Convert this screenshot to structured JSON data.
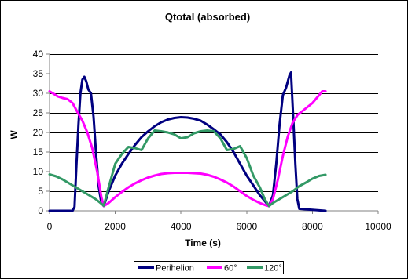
{
  "chart_data": {
    "type": "line",
    "title": "Qtotal (absorbed)",
    "xlabel": "Time (s)",
    "ylabel": "W",
    "xlim": [
      0,
      10000
    ],
    "ylim": [
      0,
      40
    ],
    "x_ticks": [
      0,
      2000,
      4000,
      6000,
      8000,
      10000
    ],
    "y_ticks": [
      0,
      5,
      10,
      15,
      20,
      25,
      30,
      35,
      40
    ],
    "grid": "horizontal",
    "legend": "bottom",
    "series": [
      {
        "name": "Perihelion",
        "color": "#000080",
        "x": [
          0,
          700,
          760,
          820,
          880,
          940,
          1000,
          1060,
          1120,
          1180,
          1260,
          1340,
          1420,
          1500,
          1580,
          1650,
          1800,
          2000,
          2200,
          2400,
          2600,
          2800,
          3000,
          3200,
          3400,
          3600,
          3800,
          4000,
          4200,
          4400,
          4600,
          4800,
          5000,
          5200,
          5400,
          5600,
          5800,
          6000,
          6200,
          6400,
          6550,
          6680,
          6800,
          6900,
          7000,
          7100,
          7200,
          7300,
          7350,
          7420,
          7480,
          7540,
          7600,
          8400
        ],
        "y": [
          0,
          0,
          1,
          12,
          22,
          30,
          33.5,
          34.2,
          33,
          31,
          30,
          24,
          14,
          6,
          2,
          1.2,
          5,
          9,
          12,
          14.5,
          16.8,
          18.8,
          20.3,
          21.6,
          22.6,
          23.3,
          23.7,
          23.9,
          23.8,
          23.5,
          23,
          22,
          20.8,
          19.5,
          17.5,
          15,
          12,
          9,
          6.5,
          4,
          2.5,
          1.2,
          4,
          12,
          22,
          29.5,
          31.5,
          34.5,
          35.3,
          23,
          12,
          3,
          0.5,
          0
        ]
      },
      {
        "name": "60°",
        "color": "#FF00FF",
        "x": [
          0,
          100,
          250,
          400,
          550,
          700,
          850,
          1000,
          1150,
          1300,
          1450,
          1580,
          1650,
          1800,
          2000,
          2200,
          2400,
          2600,
          2800,
          3000,
          3200,
          3400,
          3600,
          3800,
          4000,
          4200,
          4400,
          4600,
          4800,
          5000,
          5200,
          5400,
          5600,
          5800,
          6000,
          6200,
          6400,
          6550,
          6680,
          6800,
          6950,
          7100,
          7250,
          7400,
          7550,
          7700,
          7850,
          8000,
          8150,
          8300,
          8400
        ],
        "y": [
          30.5,
          30,
          29.2,
          28.8,
          28.5,
          27.5,
          25.2,
          23,
          20,
          16,
          10,
          3.5,
          1.2,
          2,
          3.5,
          4.8,
          6,
          7,
          7.8,
          8.5,
          9,
          9.4,
          9.6,
          9.7,
          9.7,
          9.7,
          9.6,
          9.5,
          9.2,
          8.7,
          8,
          7.2,
          6.2,
          5,
          3.8,
          2.8,
          2,
          1.5,
          1.2,
          3,
          8,
          14,
          19,
          22.5,
          24.5,
          25.5,
          26.5,
          27.5,
          29,
          30.5,
          30.5
        ]
      },
      {
        "name": "120°",
        "color": "#339966",
        "x": [
          0,
          200,
          400,
          600,
          800,
          1000,
          1200,
          1400,
          1550,
          1650,
          1800,
          2000,
          2200,
          2400,
          2600,
          2800,
          3000,
          3200,
          3400,
          3600,
          3800,
          4000,
          4200,
          4400,
          4600,
          4800,
          5000,
          5200,
          5400,
          5600,
          5800,
          6000,
          6200,
          6400,
          6550,
          6680,
          6800,
          7000,
          7200,
          7400,
          7600,
          7800,
          8000,
          8200,
          8400
        ],
        "y": [
          9.3,
          8.8,
          8,
          7,
          6,
          5,
          4,
          3,
          2,
          1.3,
          6,
          12,
          14.5,
          16.3,
          16,
          15.5,
          18.5,
          20.5,
          20.3,
          20,
          19.5,
          18.5,
          18.8,
          19.8,
          20.3,
          20.5,
          20.3,
          18.5,
          15.5,
          15.8,
          16.5,
          13.5,
          9,
          6,
          3,
          1.2,
          2,
          3,
          4,
          5,
          6.3,
          7.2,
          8.2,
          8.9,
          9.2
        ]
      }
    ]
  }
}
